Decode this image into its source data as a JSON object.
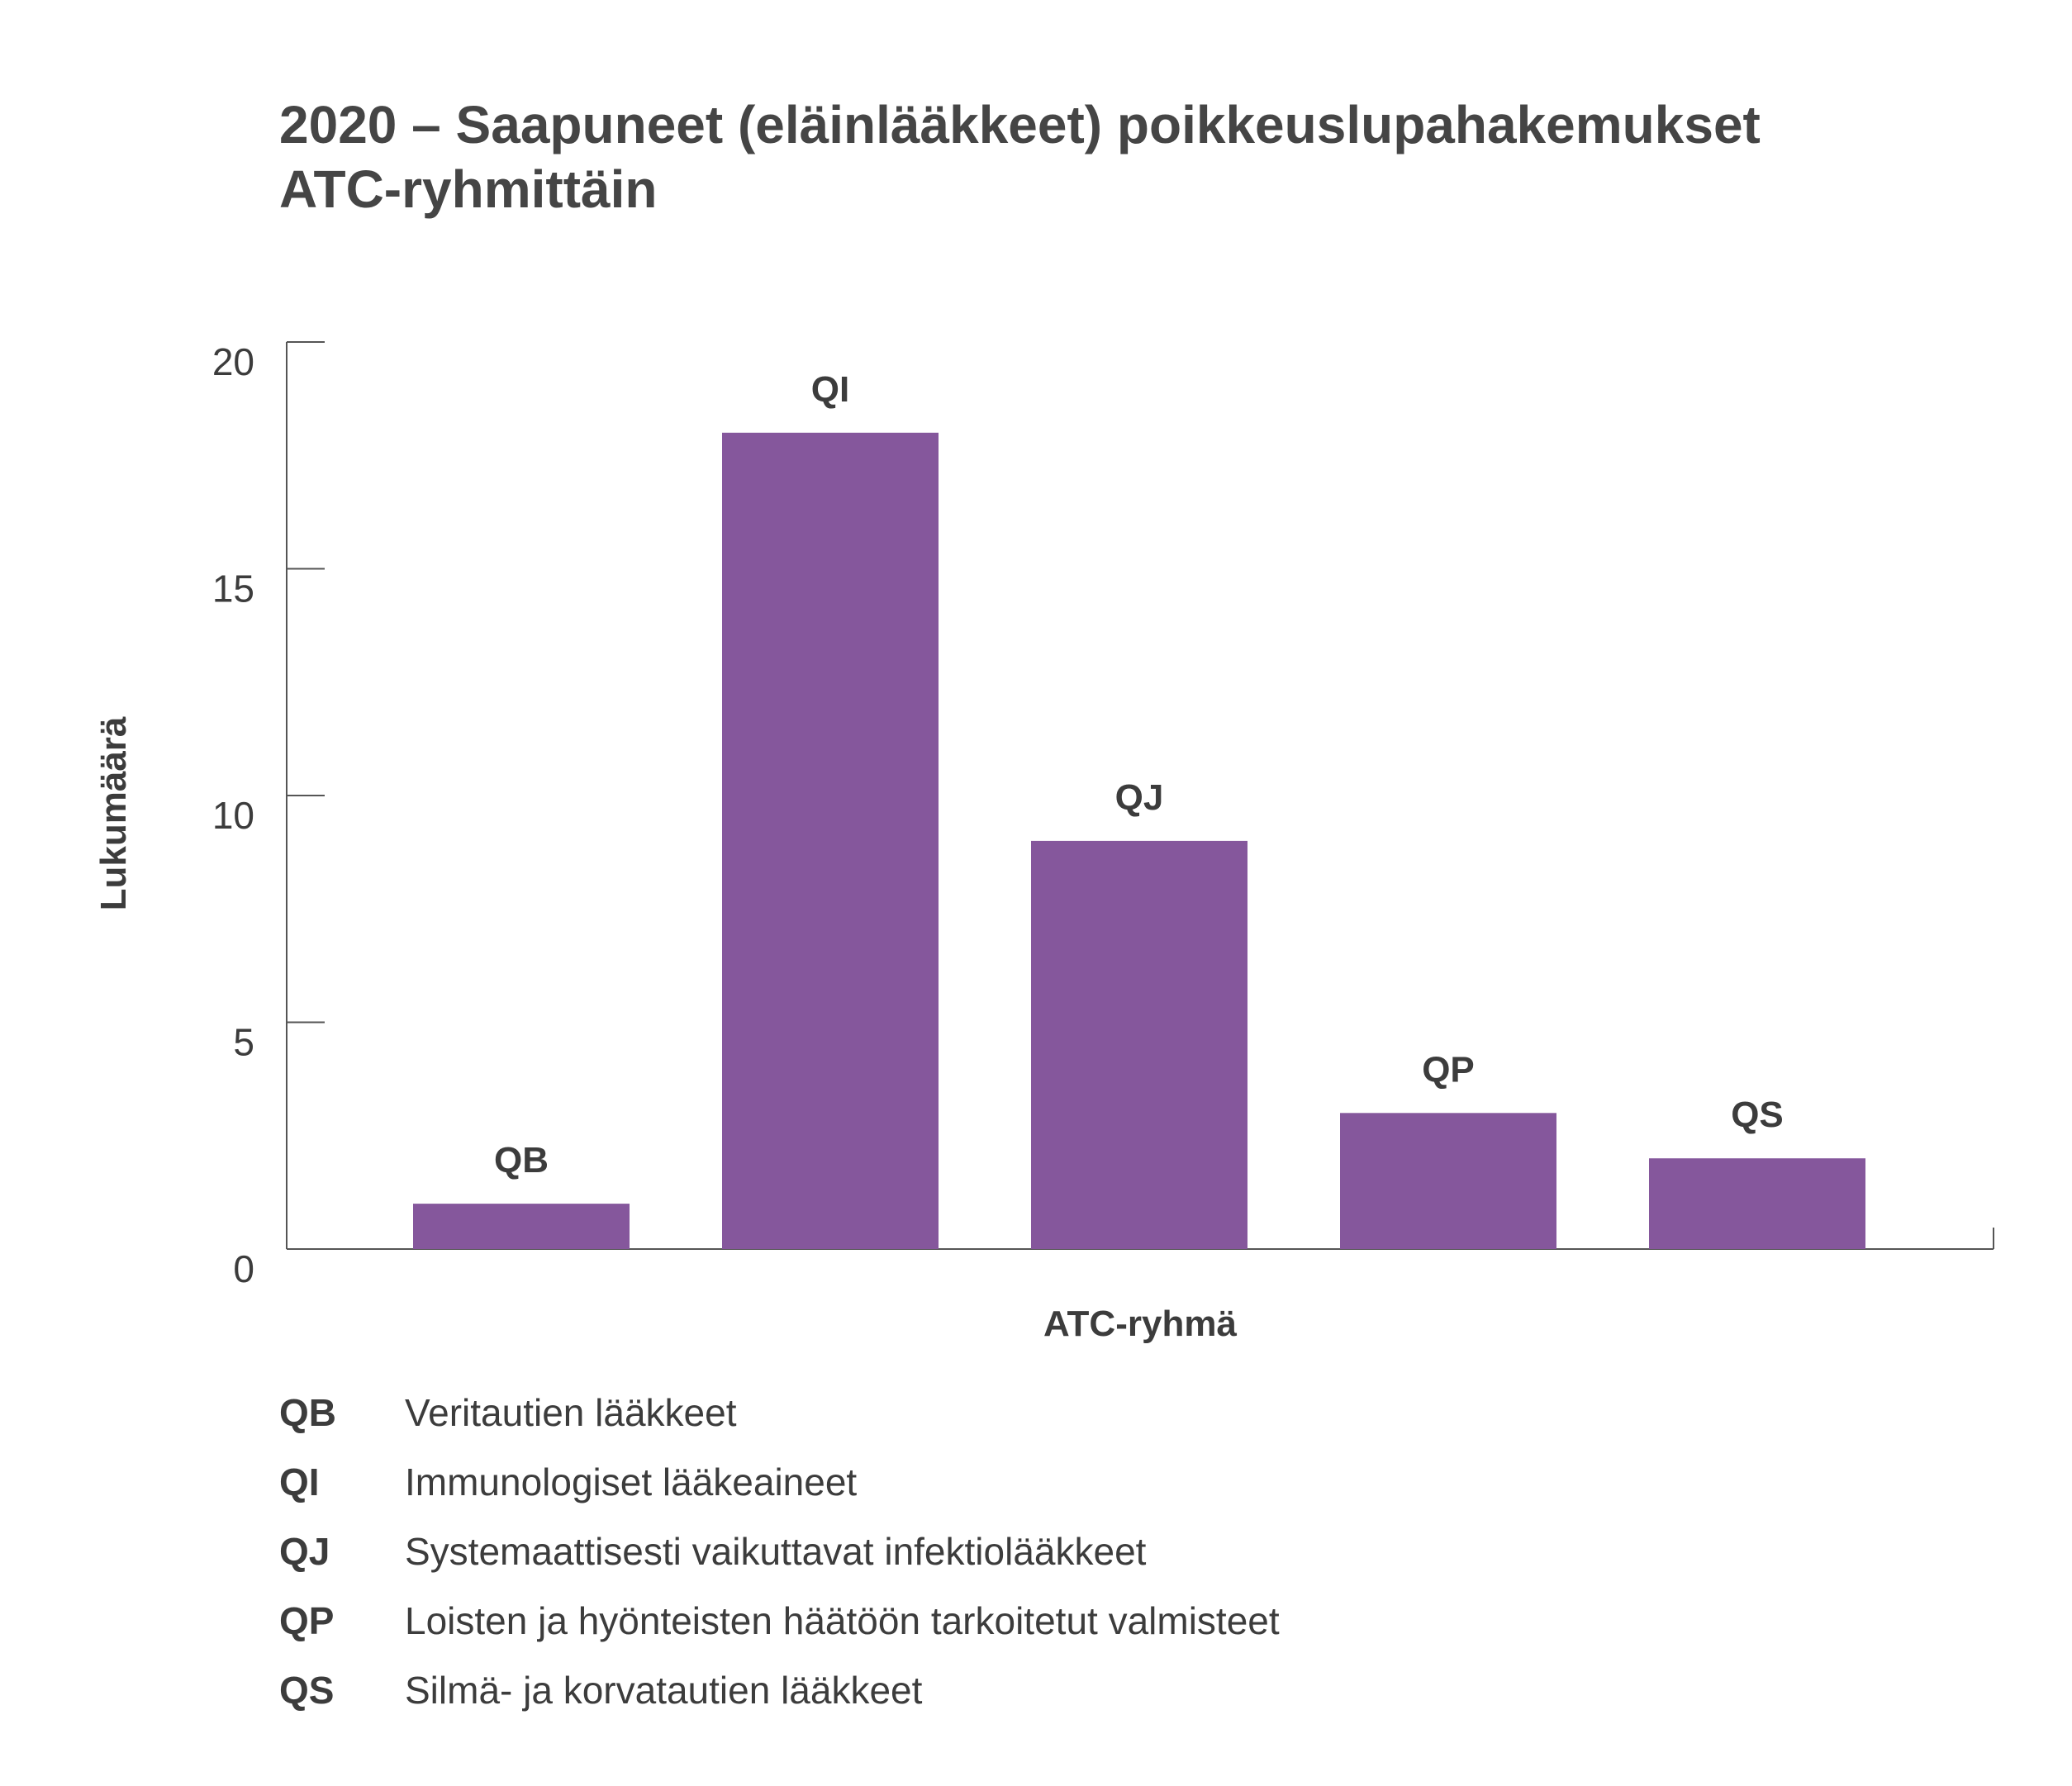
{
  "chart_data": {
    "type": "bar",
    "title": "2020 – Saapuneet (eläinlääkkeet) poikkeuslupahakemukset",
    "subtitle": "ATC-ryhmittäin",
    "xlabel": "ATC-ryhmä",
    "ylabel": "Lukumäärä",
    "categories": [
      "QB",
      "QI",
      "QJ",
      "QP",
      "QS"
    ],
    "values": [
      1,
      18,
      9,
      3,
      2
    ],
    "ylim": [
      0,
      20
    ],
    "yticks": [
      "0",
      "5",
      "10",
      "15",
      "20"
    ],
    "grid": false,
    "legend": [
      {
        "code": "QB",
        "desc": "Veritautien lääkkeet"
      },
      {
        "code": "QI",
        "desc": "Immunologiset lääkeaineet"
      },
      {
        "code": "QJ",
        "desc": "Systemaattisesti vaikuttavat infektiolääkkeet"
      },
      {
        "code": "QP",
        "desc": "Loisten ja hyönteisten häätöön tarkoitetut valmisteet"
      },
      {
        "code": "QS",
        "desc": "Silmä- ja korvatautien lääkkeet"
      }
    ],
    "colors": {
      "bar": "#85579c",
      "axis": "#555555",
      "text": "#3c3c3c"
    }
  }
}
